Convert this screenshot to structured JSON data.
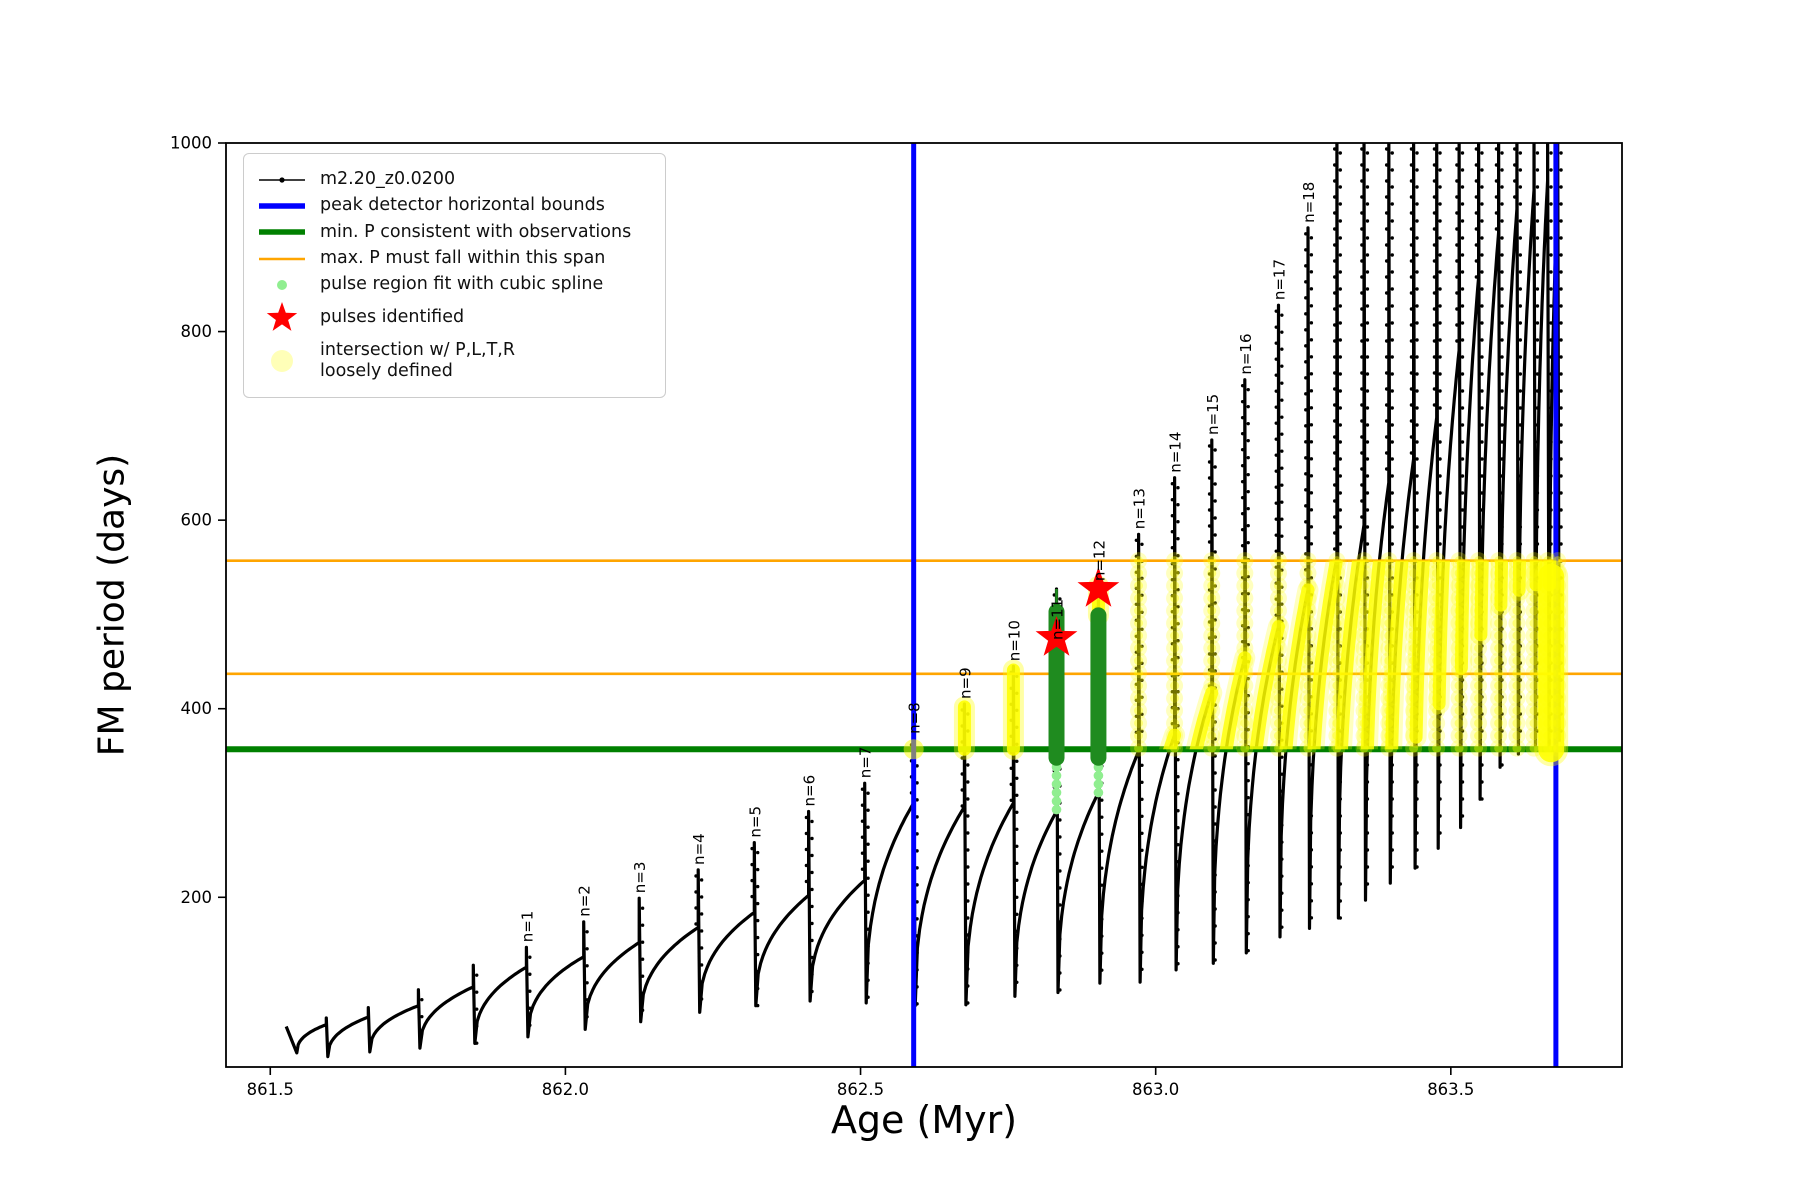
{
  "chart_data": {
    "type": "line",
    "title": "",
    "xlabel": "Age (Myr)",
    "ylabel": "FM period (days)",
    "xlim": [
      861.425,
      863.79
    ],
    "ylim": [
      20,
      1000
    ],
    "xticks": [
      861.5,
      862.0,
      862.5,
      863.0,
      863.5
    ],
    "xtick_labels": [
      "861.5",
      "862.0",
      "862.5",
      "863.0",
      "863.5"
    ],
    "yticks": [
      200,
      400,
      600,
      800,
      1000
    ],
    "ytick_labels": [
      "200",
      "400",
      "600",
      "800",
      "1000"
    ],
    "grid": false,
    "series_name": "m2.20_z0.0200",
    "series_color": "#000000",
    "peak_detector_bounds_x": [
      862.59,
      863.678
    ],
    "peak_detector_color": "#0000ff",
    "min_P_line": 357,
    "min_P_color": "#008000",
    "max_P_span": [
      437,
      557
    ],
    "max_P_color": "#ffa500",
    "track_start": {
      "t": 861.527,
      "P": 63,
      "dip_t": 861.545,
      "dip_P": 35
    },
    "pulses": [
      {
        "t": 861.595,
        "knee": 65,
        "tip": 72,
        "valley_after": 31,
        "label": null
      },
      {
        "t": 861.666,
        "knee": 73,
        "tip": 83,
        "valley_after": 36,
        "label": null
      },
      {
        "t": 861.751,
        "knee": 85,
        "tip": 102,
        "valley_after": 40,
        "label": null
      },
      {
        "t": 861.844,
        "knee": 105,
        "tip": 128,
        "valley_after": 45,
        "label": null
      },
      {
        "t": 861.934,
        "knee": 126,
        "tip": 147,
        "valley_after": 52,
        "label": "n=1"
      },
      {
        "t": 862.031,
        "knee": 137,
        "tip": 174,
        "valley_after": 60,
        "label": "n=2"
      },
      {
        "t": 862.125,
        "knee": 152,
        "tip": 199,
        "valley_after": 68,
        "label": "n=3"
      },
      {
        "t": 862.225,
        "knee": 168,
        "tip": 229,
        "valley_after": 78,
        "label": "n=4"
      },
      {
        "t": 862.32,
        "knee": 184,
        "tip": 258,
        "valley_after": 85,
        "label": "n=5"
      },
      {
        "t": 862.412,
        "knee": 202,
        "tip": 291,
        "valley_after": 90,
        "label": "n=6"
      },
      {
        "t": 862.507,
        "knee": 218,
        "tip": 321,
        "valley_after": 88,
        "label": "n=7"
      },
      {
        "t": 862.59,
        "knee": 300,
        "tip": 368,
        "valley_after": 85,
        "label": "n=8"
      },
      {
        "t": 862.676,
        "knee": 296,
        "tip": 405,
        "valley_after": 86,
        "label": "n=9"
      },
      {
        "t": 862.759,
        "knee": 300,
        "tip": 445,
        "valley_after": 95,
        "label": "n=10"
      },
      {
        "t": 862.832,
        "knee": 291,
        "tip": 527,
        "valley_after": 99,
        "label": "n=11",
        "label_dy": 56
      },
      {
        "t": 862.903,
        "knee": 311,
        "tip": 530,
        "valley_after": 109,
        "label": "n=12"
      },
      {
        "t": 862.971,
        "knee": 355,
        "tip": 585,
        "valley_after": 110,
        "label": "n=13"
      },
      {
        "t": 863.032,
        "knee": 372,
        "tip": 645,
        "valley_after": 123,
        "label": "n=14"
      },
      {
        "t": 863.095,
        "knee": 417,
        "tip": 685,
        "valley_after": 130,
        "label": "n=15"
      },
      {
        "t": 863.151,
        "knee": 454,
        "tip": 749,
        "valley_after": 141,
        "label": "n=16"
      },
      {
        "t": 863.208,
        "knee": 487,
        "tip": 828,
        "valley_after": 158,
        "label": "n=17"
      },
      {
        "t": 863.258,
        "knee": 526,
        "tip": 910,
        "valley_after": 167,
        "label": "n=18"
      },
      {
        "t": 863.307,
        "knee": 560,
        "tip": 1015,
        "valley_after": 178,
        "label": null
      },
      {
        "t": 863.353,
        "knee": 595,
        "tip": 1015,
        "valley_after": 197,
        "label": null
      },
      {
        "t": 863.395,
        "knee": 640,
        "tip": 1015,
        "valley_after": 215,
        "label": null
      },
      {
        "t": 863.437,
        "knee": 665,
        "tip": 1015,
        "valley_after": 231,
        "label": null
      },
      {
        "t": 863.476,
        "knee": 709,
        "tip": 1015,
        "valley_after": 252,
        "label": null
      },
      {
        "t": 863.514,
        "knee": 780,
        "tip": 1015,
        "valley_after": 274,
        "label": null
      },
      {
        "t": 863.547,
        "knee": 857,
        "tip": 1015,
        "valley_after": 304,
        "label": null
      },
      {
        "t": 863.581,
        "knee": 905,
        "tip": 1015,
        "valley_after": 338,
        "label": null
      },
      {
        "t": 863.612,
        "knee": 930,
        "tip": 1015,
        "valley_after": 352,
        "label": null
      },
      {
        "t": 863.641,
        "knee": 950,
        "tip": 1015,
        "valley_after": 356,
        "label": null
      },
      {
        "t": 863.664,
        "knee": 960,
        "tip": 1015,
        "valley_after": 360,
        "label": null
      },
      {
        "t": 863.681,
        "knee": 950,
        "tip": 1015,
        "valley_after": 365,
        "label": null
      }
    ],
    "pulses_identified": [
      {
        "t": 862.832,
        "P": 475
      },
      {
        "t": 862.903,
        "P": 527
      }
    ],
    "star_color": "#ff0000",
    "spline_fit_regions": [
      {
        "t": 862.832,
        "P_from": 348,
        "P_to": 503,
        "spike_line_to": 527,
        "dots_from": 293
      },
      {
        "t": 862.903,
        "P_from": 348,
        "P_to": 499,
        "spike_line_to": null,
        "dots_from": 311
      }
    ],
    "spline_region_color": "#1f8b1f",
    "spline_dot_color": "#90ee90",
    "intersection_markers": {
      "color": "#ffff00",
      "single_circle": {
        "t": 862.59,
        "P": 357
      },
      "bright_columns": [
        {
          "t": 862.676,
          "P_from": 357,
          "P_to": 402,
          "wide": false
        },
        {
          "t": 862.759,
          "P_from": 357,
          "P_to": 441,
          "wide": false
        },
        {
          "t": 862.903,
          "P_from": 499,
          "P_to": 530,
          "wide": false
        },
        {
          "t": 863.67,
          "P_from": 357,
          "P_to": 540,
          "wide": true
        }
      ],
      "pale_chain_spikes_t": [
        862.971,
        863.032,
        863.095,
        863.151,
        863.208,
        863.258,
        863.307,
        863.353,
        863.395,
        863.437,
        863.476,
        863.514,
        863.547,
        863.581,
        863.612,
        863.641,
        863.664,
        863.681
      ],
      "pale_chain_P_range": [
        357,
        557
      ],
      "bright_arc_min_t": 863.03,
      "bright_arc_P_range": [
        357,
        557
      ]
    }
  },
  "legend": {
    "entries": [
      {
        "label": "m2.20_z0.0200",
        "handle": "line-dot",
        "color": "#000000"
      },
      {
        "label": "peak detector horizontal bounds",
        "handle": "thick-line",
        "color": "#0000ff"
      },
      {
        "label": "min. P consistent with observations",
        "handle": "thick-line",
        "color": "#008000"
      },
      {
        "label": "max. P must fall within this span",
        "handle": "thin-line",
        "color": "#ffa500"
      },
      {
        "label": "pulse region fit with cubic spline",
        "handle": "small-dot",
        "color": "#90ee90"
      },
      {
        "label": "pulses identified",
        "handle": "star",
        "color": "#ff0000"
      },
      {
        "label": "intersection w/ P,L,T,R\nloosely defined",
        "handle": "pale-circle",
        "color": "#ffff00"
      }
    ]
  }
}
